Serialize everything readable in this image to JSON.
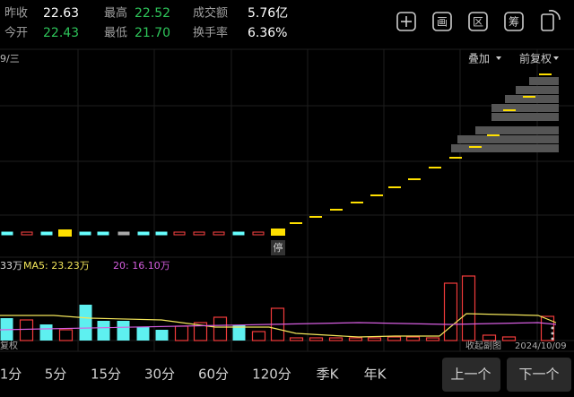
{
  "header": {
    "stats": [
      {
        "label": "昨收",
        "value": "22.63"
      },
      {
        "label": "今开",
        "value": "22.43"
      },
      {
        "label": "最高",
        "value": "22.52"
      },
      {
        "label": "最低",
        "value": "21.70"
      },
      {
        "label": "成交额",
        "value": "5.76亿"
      },
      {
        "label": "换手率",
        "value": "6.36%"
      }
    ],
    "icons": [
      "画",
      "区",
      "筹"
    ]
  },
  "chart": {
    "date_label": "9/三",
    "overlay": "叠加",
    "adjust": "前复权",
    "halt": "停",
    "volume_legend": [
      "33万",
      "MA5: 23.23万",
      "20: 16.10万"
    ],
    "footer_left": "复权",
    "collapse": "收起副图",
    "date": "2024/10/09"
  },
  "periods": [
    "1分",
    "5分",
    "15分",
    "30分",
    "60分",
    "120分",
    "季K",
    "年K"
  ],
  "nav": [
    "上一个",
    "下一个"
  ]
}
